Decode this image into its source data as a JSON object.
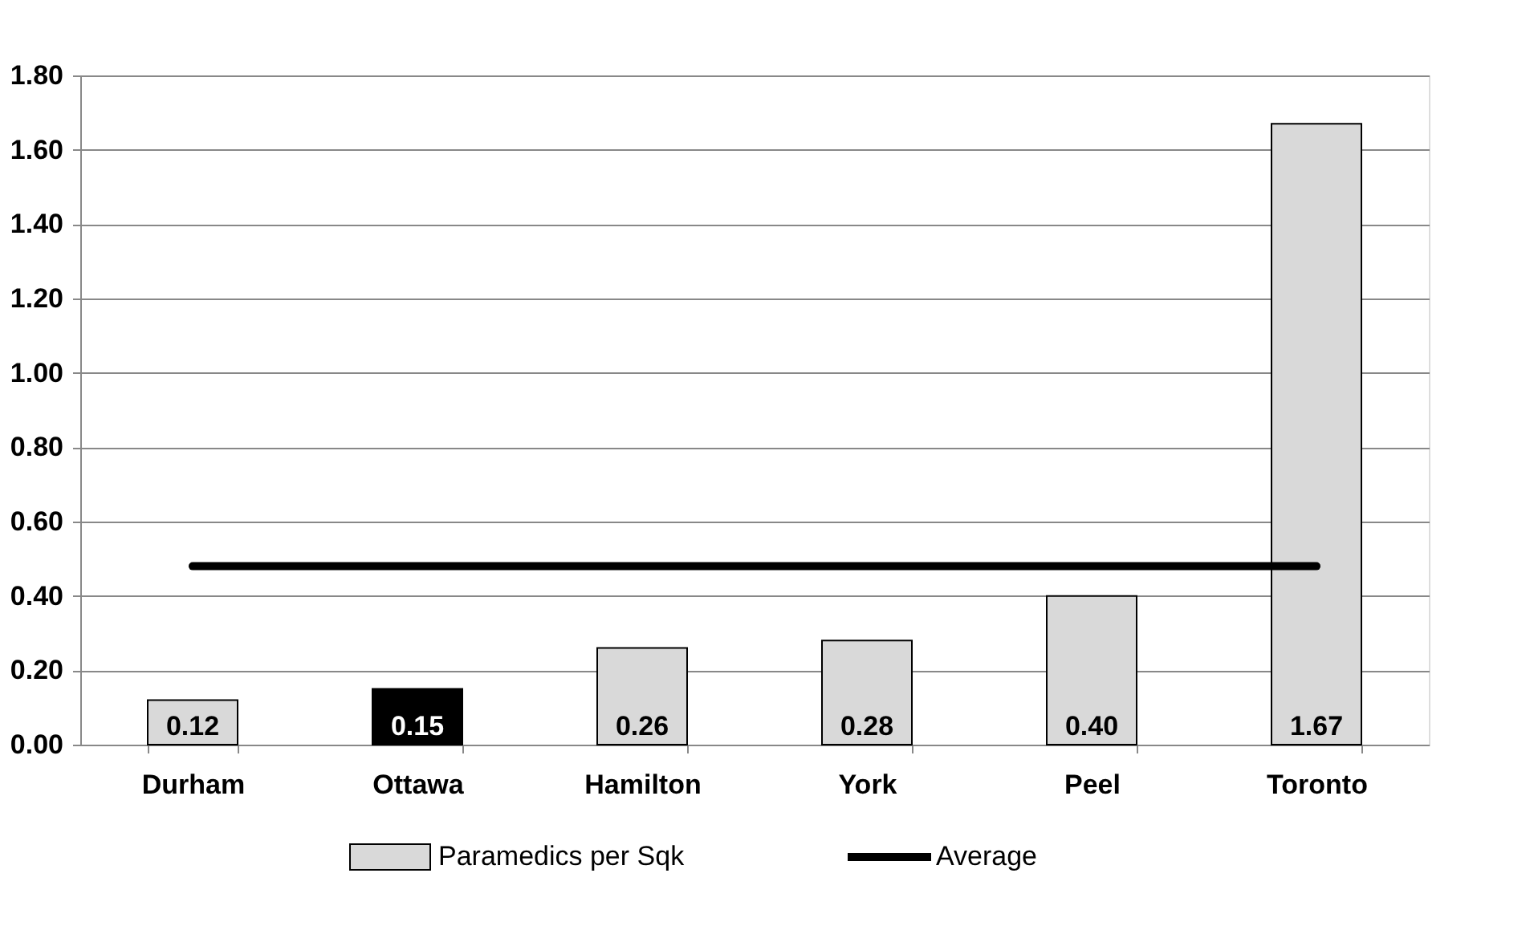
{
  "chart_data": {
    "type": "bar",
    "categories": [
      "Durham",
      "Ottawa",
      "Hamilton",
      "York",
      "Peel",
      "Toronto"
    ],
    "series": [
      {
        "name": "Paramedics per Sqk",
        "colors": [
          "#d9d9d9",
          "#000000",
          "#d9d9d9",
          "#d9d9d9",
          "#d9d9d9",
          "#d9d9d9"
        ],
        "color": "#d9d9d9",
        "values": [
          0.12,
          0.15,
          0.26,
          0.28,
          0.4,
          1.67
        ],
        "value_labels": [
          "0.12",
          "0.15",
          "0.26",
          "0.28",
          "0.40",
          "1.67"
        ]
      },
      {
        "name": "Average",
        "type": "line",
        "color": "#000000",
        "values": [
          0.48,
          0.48,
          0.48,
          0.48,
          0.48,
          0.48
        ]
      }
    ],
    "ylim": [
      0,
      1.8
    ],
    "yticks": [
      {
        "value": 0,
        "label": "0.00"
      },
      {
        "value": 0.2,
        "label": "0.20"
      },
      {
        "value": 0.4,
        "label": "0.40"
      },
      {
        "value": 0.6,
        "label": "0.60"
      },
      {
        "value": 0.8,
        "label": "0.80"
      },
      {
        "value": 1.0,
        "label": "1.00"
      },
      {
        "value": 1.2,
        "label": "1.20"
      },
      {
        "value": 1.4,
        "label": "1.40"
      },
      {
        "value": 1.6,
        "label": "1.60"
      },
      {
        "value": 1.8,
        "label": "1.80"
      }
    ],
    "grid": "y",
    "legend": "bottom"
  }
}
